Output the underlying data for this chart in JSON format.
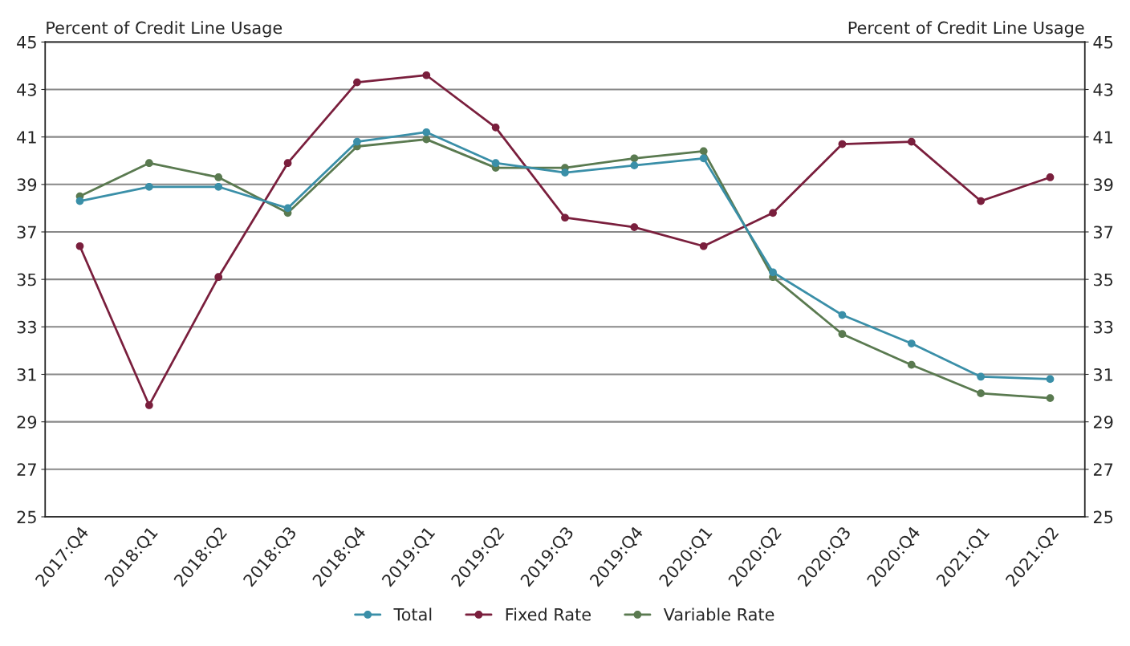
{
  "chart_data": {
    "type": "line",
    "ylabel": "Percent of Credit Line Usage",
    "y2label": "Percent of Credit Line Usage",
    "categories": [
      "2017:Q4",
      "2018:Q1",
      "2018:Q2",
      "2018:Q3",
      "2018:Q4",
      "2019:Q1",
      "2019:Q2",
      "2019:Q3",
      "2019:Q4",
      "2020:Q1",
      "2020:Q2",
      "2020:Q3",
      "2020:Q4",
      "2021:Q1",
      "2021:Q2"
    ],
    "series": [
      {
        "name": "Total",
        "color": "#3a8fa8",
        "values": [
          38.3,
          38.9,
          38.9,
          38.0,
          40.8,
          41.2,
          39.9,
          39.5,
          39.8,
          40.1,
          35.3,
          33.5,
          32.3,
          30.9,
          30.8
        ]
      },
      {
        "name": "Fixed Rate",
        "color": "#7a1f3d",
        "values": [
          36.4,
          29.7,
          35.1,
          39.9,
          43.3,
          43.6,
          41.4,
          37.6,
          37.2,
          36.4,
          37.8,
          40.7,
          40.8,
          38.3,
          39.3
        ]
      },
      {
        "name": "Variable Rate",
        "color": "#5a7a50",
        "values": [
          38.5,
          39.9,
          39.3,
          37.8,
          40.6,
          40.9,
          39.7,
          39.7,
          40.1,
          40.4,
          35.1,
          32.7,
          31.4,
          30.2,
          30.0
        ]
      }
    ],
    "ylim": [
      25,
      45
    ],
    "yticks": [
      25,
      27,
      29,
      31,
      33,
      35,
      37,
      39,
      41,
      43,
      45
    ],
    "y2lim": [
      25,
      45
    ],
    "y2ticks": [
      25,
      27,
      29,
      31,
      33,
      35,
      37,
      39,
      41,
      43,
      45
    ],
    "grid": "y",
    "legend": "bottom",
    "marker": "circle",
    "line_style": "solid"
  }
}
